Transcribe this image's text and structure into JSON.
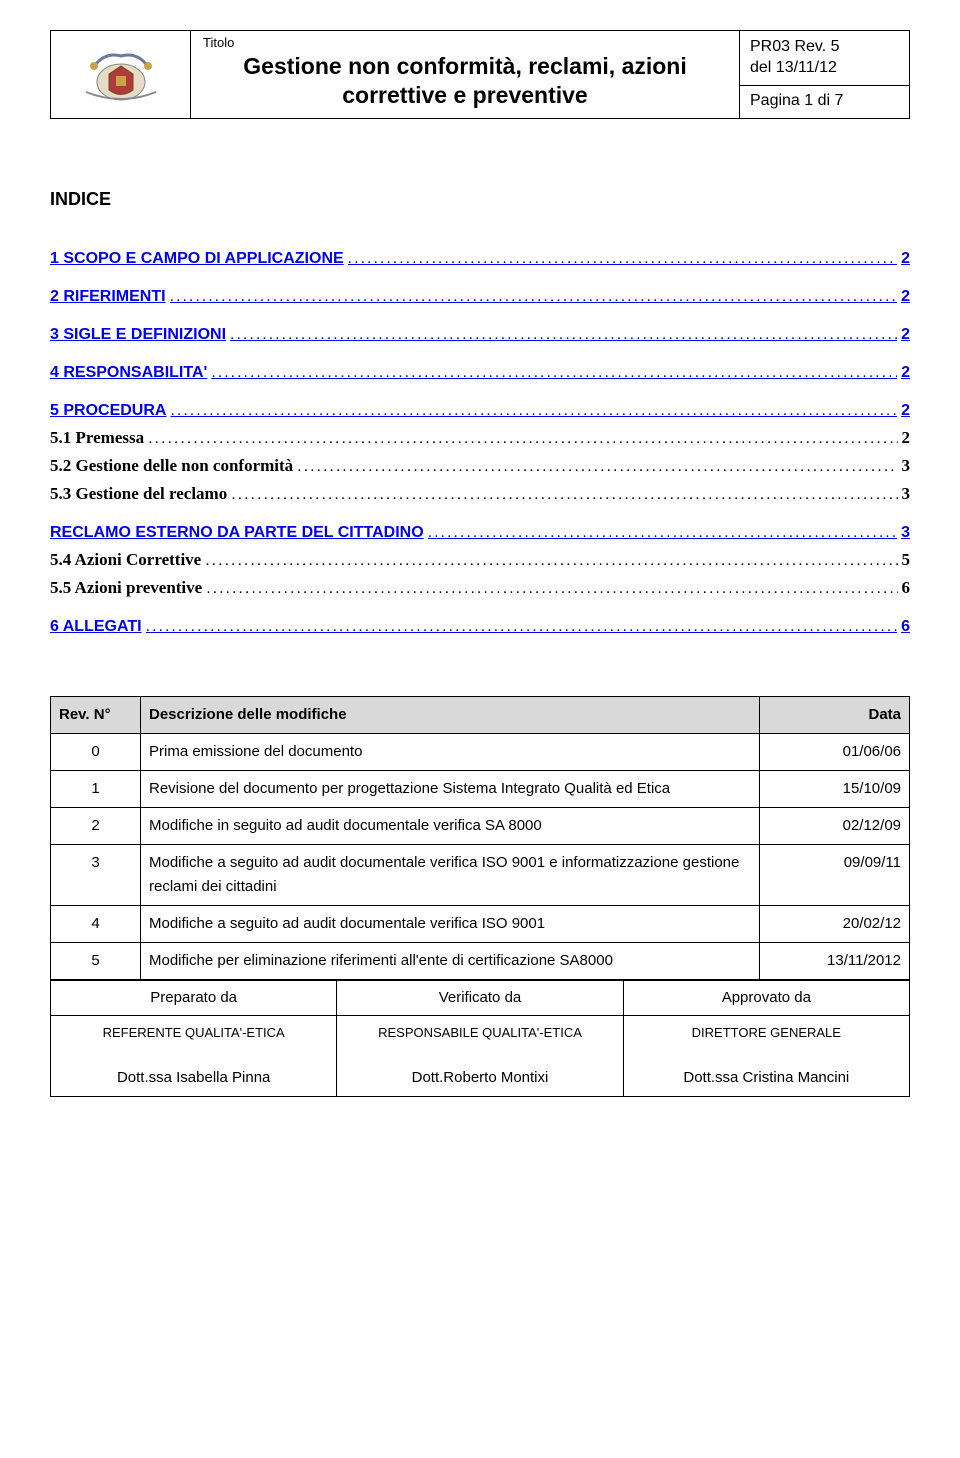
{
  "header": {
    "title_label": "Titolo",
    "title_main": "Gestione non conformità, reclami, azioni correttive e preventive",
    "doc_code": "PR03 Rev. 5",
    "doc_date": "del 13/11/12",
    "page_label": "Pagina 1 di 7",
    "logo_colors": {
      "gold": "#c9a24a",
      "red": "#b03a3a",
      "blue": "#6a7a9a",
      "grey": "#888888"
    }
  },
  "indice_heading": "INDICE",
  "toc": [
    {
      "level": 1,
      "label": "1 SCOPO E CAMPO DI APPLICAZIONE",
      "page": "2",
      "bold": true,
      "blue": true,
      "serif": false
    },
    {
      "level": 1,
      "label": "2 RIFERIMENTI",
      "page": "2",
      "bold": true,
      "blue": true,
      "serif": false
    },
    {
      "level": 1,
      "label": "3 SIGLE E DEFINIZIONI",
      "page": "2",
      "bold": true,
      "blue": true,
      "serif": false
    },
    {
      "level": 1,
      "label": "4 RESPONSABILITA'",
      "page": "2",
      "bold": true,
      "blue": true,
      "serif": false
    },
    {
      "level": 1,
      "label": "5 PROCEDURA",
      "page": "2",
      "bold": true,
      "blue": true,
      "serif": false
    },
    {
      "level": 2,
      "label": "5.1 Premessa",
      "page": "2",
      "bold": true,
      "blue": false,
      "serif": true
    },
    {
      "level": 2,
      "label": "5.2 Gestione delle non conformità",
      "page": "3",
      "bold": true,
      "blue": false,
      "serif": true
    },
    {
      "level": 2,
      "label": "5.3 Gestione del reclamo",
      "page": "3",
      "bold": true,
      "blue": false,
      "serif": true
    },
    {
      "level": 1,
      "label": "RECLAMO ESTERNO DA PARTE DEL CITTADINO",
      "page": "3",
      "bold": true,
      "blue": true,
      "serif": false
    },
    {
      "level": 2,
      "label": "5.4 Azioni Correttive",
      "page": "5",
      "bold": true,
      "blue": false,
      "serif": true
    },
    {
      "level": 2,
      "label": "5.5 Azioni preventive",
      "page": "6",
      "bold": true,
      "blue": false,
      "serif": true
    },
    {
      "level": 1,
      "label": "6 ALLEGATI",
      "page": "6",
      "bold": true,
      "blue": true,
      "serif": false
    }
  ],
  "rev_table": {
    "headers": {
      "rev": "Rev. N°",
      "desc": "Descrizione delle modifiche",
      "data": "Data"
    },
    "rows": [
      {
        "rev": "0",
        "desc": "Prima emissione del documento",
        "data": "01/06/06"
      },
      {
        "rev": "1",
        "desc": "Revisione del documento per progettazione Sistema Integrato Qualità ed Etica",
        "data": "15/10/09"
      },
      {
        "rev": "2",
        "desc": "Modifiche in seguito ad audit documentale verifica SA 8000",
        "data": "02/12/09"
      },
      {
        "rev": "3",
        "desc": "Modifiche a seguito ad audit documentale verifica ISO 9001 e informatizzazione gestione reclami dei cittadini",
        "data": "09/09/11"
      },
      {
        "rev": "4",
        "desc": "Modifiche a seguito ad audit documentale verifica ISO 9001",
        "data": "20/02/12"
      },
      {
        "rev": "5",
        "desc": "Modifiche per eliminazione riferimenti all'ente di certificazione SA8000",
        "data": "13/11/2012"
      }
    ]
  },
  "sign_table": {
    "labels": {
      "prep": "Preparato da",
      "verif": "Verificato da",
      "appr": "Approvato da"
    },
    "roles": {
      "prep": "REFERENTE QUALITA'-ETICA",
      "verif": "RESPONSABILE QUALITA'-ETICA",
      "appr": "DIRETTORE GENERALE"
    },
    "names": {
      "prep": "Dott.ssa Isabella Pinna",
      "verif": "Dott.Roberto Montixi",
      "appr": "Dott.ssa Cristina Mancini"
    }
  }
}
